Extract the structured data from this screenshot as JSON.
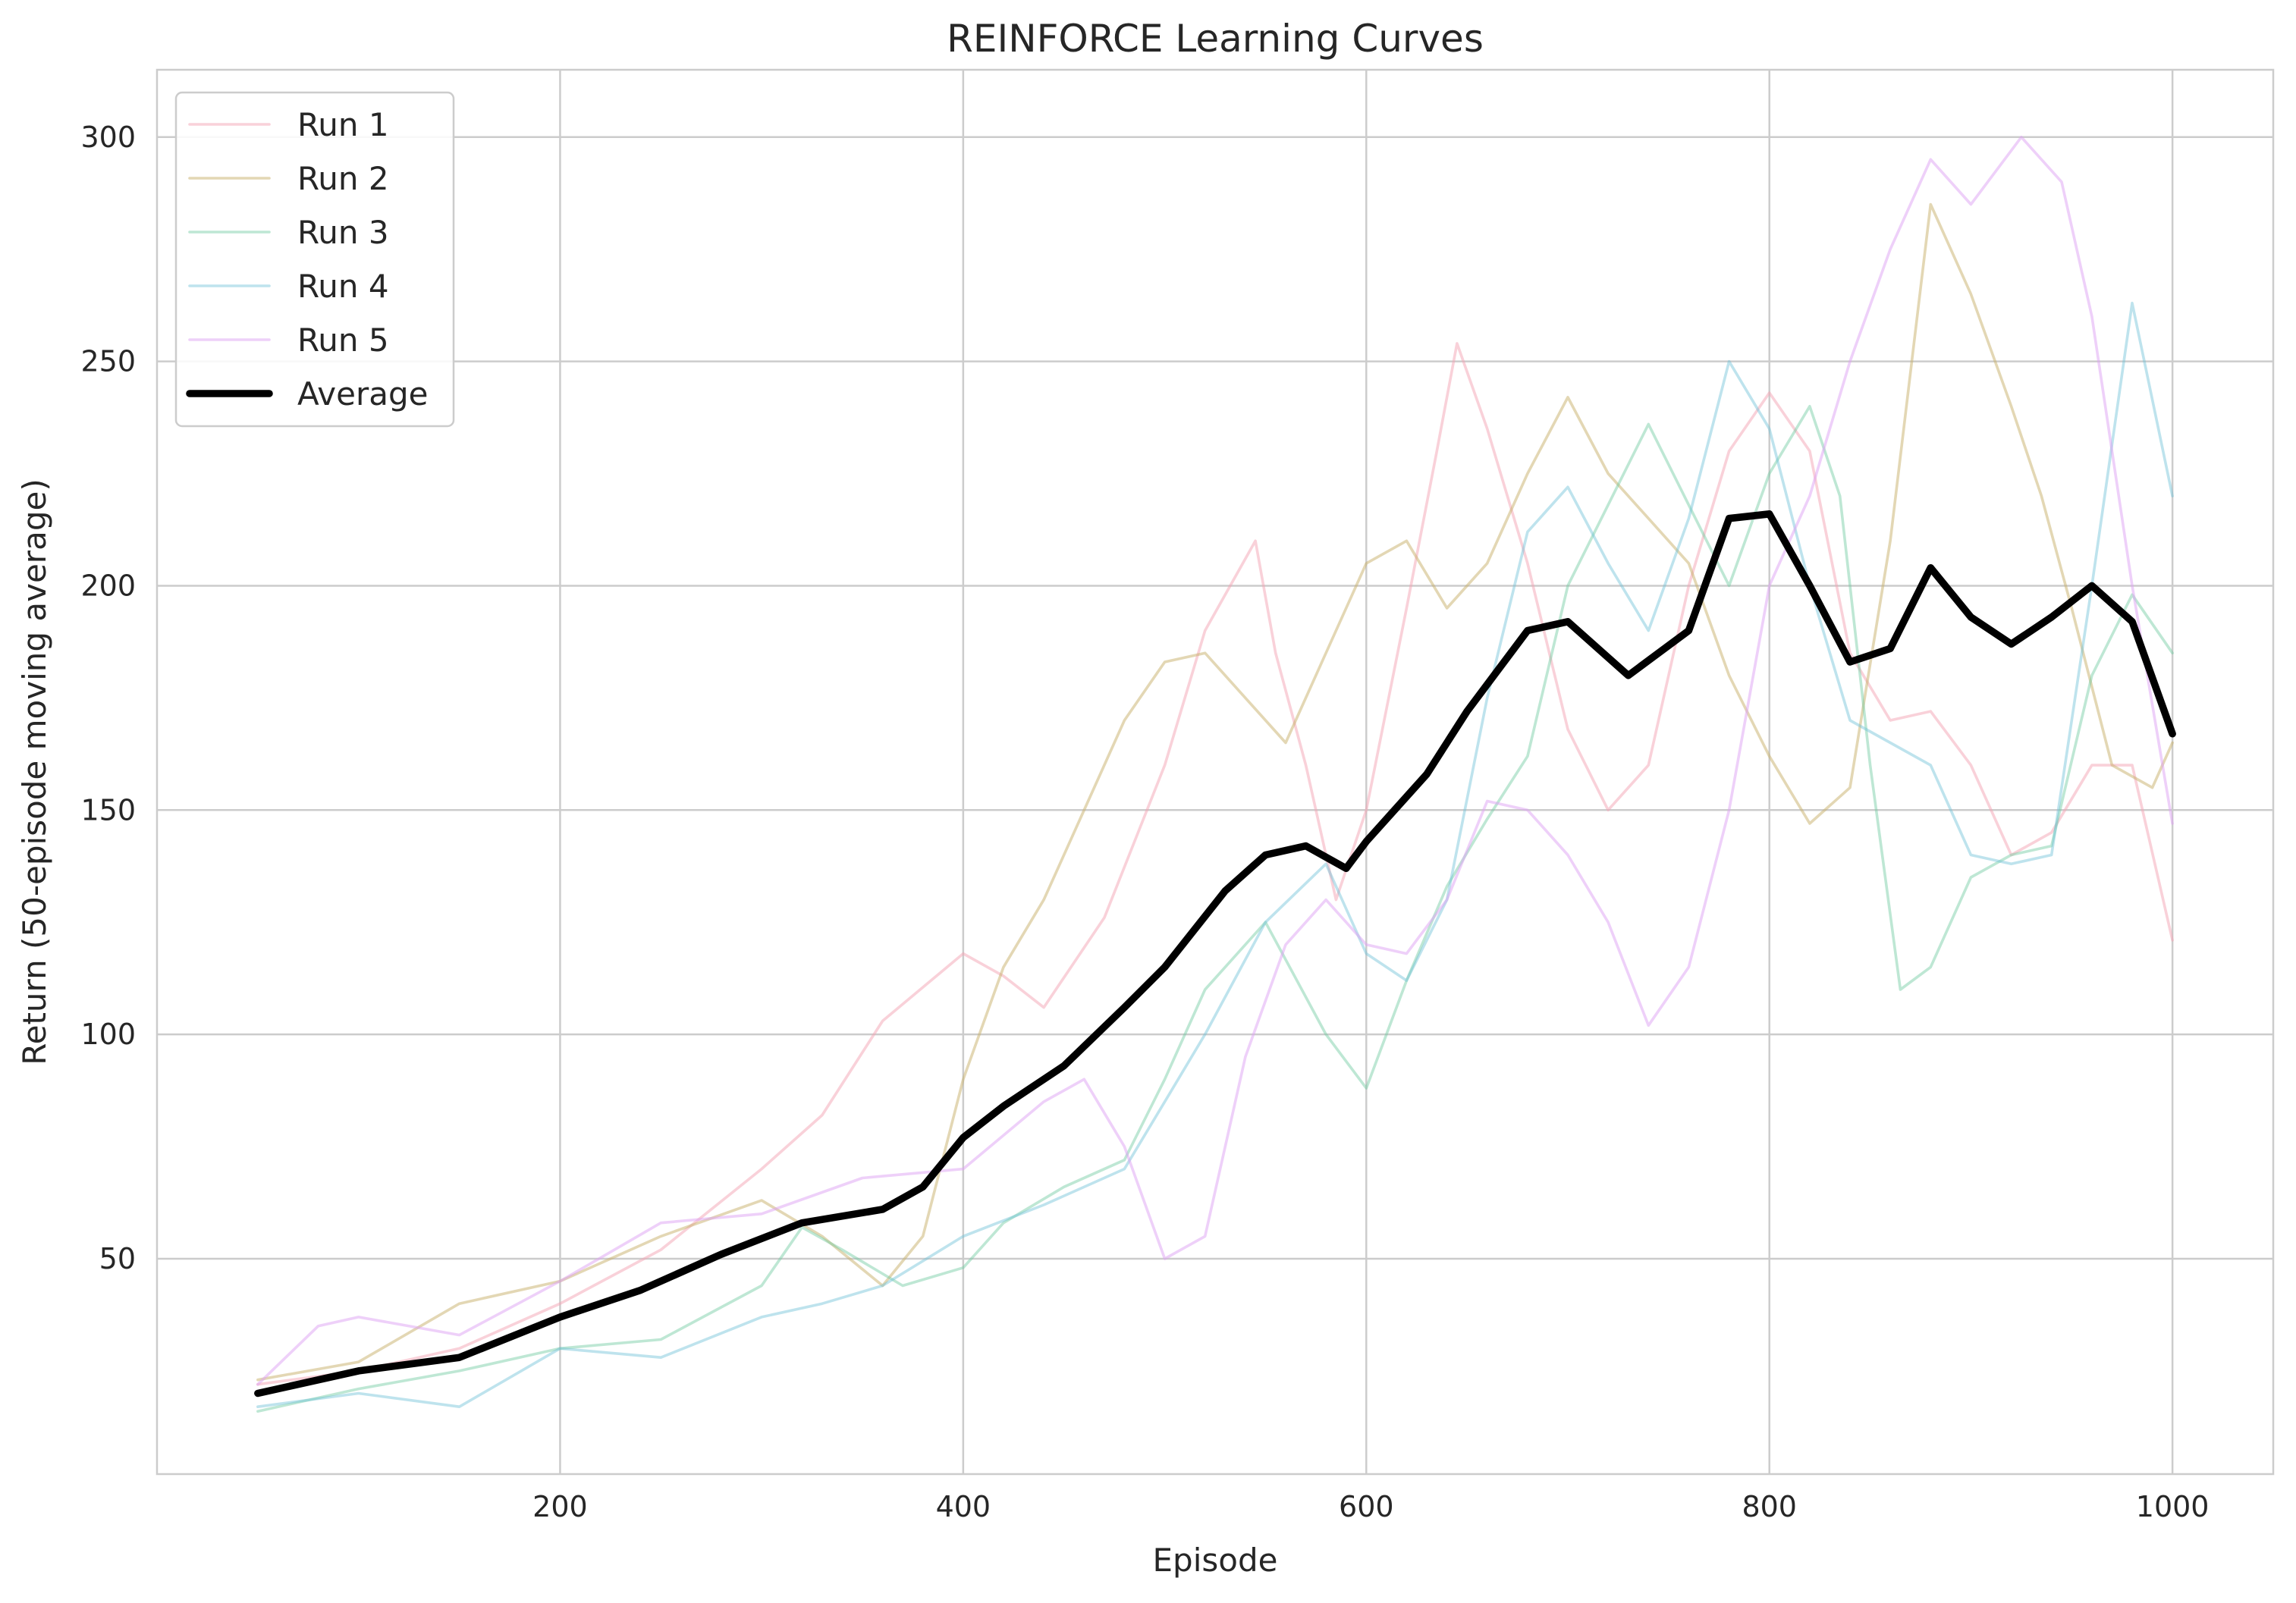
{
  "chart_data": {
    "type": "line",
    "title": "REINFORCE Learning Curves",
    "xlabel": "Episode",
    "ylabel": "Return (50-episode moving average)",
    "xlim": [
      0,
      1050
    ],
    "ylim": [
      2,
      315
    ],
    "xticks": [
      200,
      400,
      600,
      800,
      1000
    ],
    "yticks": [
      50,
      100,
      150,
      200,
      250,
      300
    ],
    "grid": true,
    "legend_position": "top-left",
    "series": [
      {
        "name": "Run 1",
        "color": "#f4a3b3",
        "opacity": 0.5,
        "width": 1.5,
        "points": [
          [
            50,
            22
          ],
          [
            100,
            25
          ],
          [
            150,
            30
          ],
          [
            200,
            40
          ],
          [
            250,
            52
          ],
          [
            300,
            70
          ],
          [
            330,
            82
          ],
          [
            360,
            103
          ],
          [
            400,
            118
          ],
          [
            420,
            113
          ],
          [
            440,
            106
          ],
          [
            470,
            126
          ],
          [
            500,
            160
          ],
          [
            520,
            190
          ],
          [
            545,
            210
          ],
          [
            555,
            185
          ],
          [
            570,
            160
          ],
          [
            585,
            130
          ],
          [
            600,
            150
          ],
          [
            620,
            195
          ],
          [
            635,
            230
          ],
          [
            645,
            254
          ],
          [
            660,
            235
          ],
          [
            680,
            205
          ],
          [
            700,
            168
          ],
          [
            720,
            150
          ],
          [
            740,
            160
          ],
          [
            760,
            200
          ],
          [
            780,
            230
          ],
          [
            800,
            243
          ],
          [
            820,
            230
          ],
          [
            840,
            185
          ],
          [
            860,
            170
          ],
          [
            880,
            172
          ],
          [
            900,
            160
          ],
          [
            920,
            140
          ],
          [
            940,
            145
          ],
          [
            960,
            160
          ],
          [
            980,
            160
          ],
          [
            1000,
            121
          ]
        ]
      },
      {
        "name": "Run 2",
        "color": "#c8b06a",
        "opacity": 0.5,
        "width": 1.5,
        "points": [
          [
            50,
            23
          ],
          [
            100,
            27
          ],
          [
            150,
            40
          ],
          [
            200,
            45
          ],
          [
            250,
            55
          ],
          [
            300,
            63
          ],
          [
            330,
            55
          ],
          [
            360,
            44
          ],
          [
            380,
            55
          ],
          [
            400,
            90
          ],
          [
            420,
            115
          ],
          [
            440,
            130
          ],
          [
            460,
            150
          ],
          [
            480,
            170
          ],
          [
            500,
            183
          ],
          [
            520,
            185
          ],
          [
            540,
            175
          ],
          [
            560,
            165
          ],
          [
            580,
            185
          ],
          [
            600,
            205
          ],
          [
            620,
            210
          ],
          [
            640,
            195
          ],
          [
            660,
            205
          ],
          [
            680,
            225
          ],
          [
            700,
            242
          ],
          [
            720,
            225
          ],
          [
            740,
            215
          ],
          [
            760,
            205
          ],
          [
            780,
            180
          ],
          [
            800,
            162
          ],
          [
            820,
            147
          ],
          [
            840,
            155
          ],
          [
            860,
            210
          ],
          [
            880,
            285
          ],
          [
            900,
            265
          ],
          [
            920,
            240
          ],
          [
            935,
            220
          ],
          [
            950,
            195
          ],
          [
            970,
            160
          ],
          [
            990,
            155
          ],
          [
            1000,
            165
          ]
        ]
      },
      {
        "name": "Run 3",
        "color": "#6fc9a0",
        "opacity": 0.45,
        "width": 1.5,
        "points": [
          [
            50,
            16
          ],
          [
            100,
            21
          ],
          [
            150,
            25
          ],
          [
            200,
            30
          ],
          [
            250,
            32
          ],
          [
            300,
            44
          ],
          [
            320,
            57
          ],
          [
            340,
            52
          ],
          [
            370,
            44
          ],
          [
            400,
            48
          ],
          [
            420,
            58
          ],
          [
            450,
            66
          ],
          [
            480,
            72
          ],
          [
            500,
            90
          ],
          [
            520,
            110
          ],
          [
            550,
            125
          ],
          [
            580,
            100
          ],
          [
            600,
            88
          ],
          [
            620,
            112
          ],
          [
            640,
            133
          ],
          [
            660,
            148
          ],
          [
            680,
            162
          ],
          [
            700,
            200
          ],
          [
            720,
            218
          ],
          [
            740,
            236
          ],
          [
            760,
            218
          ],
          [
            780,
            200
          ],
          [
            800,
            225
          ],
          [
            820,
            240
          ],
          [
            835,
            220
          ],
          [
            850,
            160
          ],
          [
            865,
            110
          ],
          [
            880,
            115
          ],
          [
            900,
            135
          ],
          [
            920,
            140
          ],
          [
            940,
            142
          ],
          [
            960,
            180
          ],
          [
            980,
            198
          ],
          [
            1000,
            185
          ]
        ]
      },
      {
        "name": "Run 4",
        "color": "#6ec0d8",
        "opacity": 0.45,
        "width": 1.5,
        "points": [
          [
            50,
            17
          ],
          [
            100,
            20
          ],
          [
            150,
            17
          ],
          [
            200,
            30
          ],
          [
            250,
            28
          ],
          [
            300,
            37
          ],
          [
            330,
            40
          ],
          [
            360,
            44
          ],
          [
            400,
            55
          ],
          [
            440,
            62
          ],
          [
            480,
            70
          ],
          [
            500,
            85
          ],
          [
            520,
            100
          ],
          [
            550,
            125
          ],
          [
            580,
            138
          ],
          [
            600,
            118
          ],
          [
            620,
            112
          ],
          [
            640,
            130
          ],
          [
            660,
            175
          ],
          [
            680,
            212
          ],
          [
            700,
            222
          ],
          [
            720,
            205
          ],
          [
            740,
            190
          ],
          [
            760,
            215
          ],
          [
            780,
            250
          ],
          [
            800,
            235
          ],
          [
            820,
            200
          ],
          [
            840,
            170
          ],
          [
            860,
            165
          ],
          [
            880,
            160
          ],
          [
            900,
            140
          ],
          [
            920,
            138
          ],
          [
            940,
            140
          ],
          [
            960,
            200
          ],
          [
            980,
            263
          ],
          [
            1000,
            220
          ]
        ]
      },
      {
        "name": "Run 5",
        "color": "#dda2f3",
        "opacity": 0.5,
        "width": 1.5,
        "points": [
          [
            50,
            22
          ],
          [
            80,
            35
          ],
          [
            100,
            37
          ],
          [
            150,
            33
          ],
          [
            200,
            45
          ],
          [
            250,
            58
          ],
          [
            300,
            60
          ],
          [
            350,
            68
          ],
          [
            400,
            70
          ],
          [
            440,
            85
          ],
          [
            460,
            90
          ],
          [
            480,
            75
          ],
          [
            500,
            50
          ],
          [
            520,
            55
          ],
          [
            540,
            95
          ],
          [
            560,
            120
          ],
          [
            580,
            130
          ],
          [
            600,
            120
          ],
          [
            620,
            118
          ],
          [
            640,
            130
          ],
          [
            660,
            152
          ],
          [
            680,
            150
          ],
          [
            700,
            140
          ],
          [
            720,
            125
          ],
          [
            740,
            102
          ],
          [
            760,
            115
          ],
          [
            780,
            150
          ],
          [
            800,
            200
          ],
          [
            820,
            220
          ],
          [
            840,
            250
          ],
          [
            860,
            275
          ],
          [
            880,
            295
          ],
          [
            900,
            285
          ],
          [
            925,
            300
          ],
          [
            945,
            290
          ],
          [
            960,
            260
          ],
          [
            980,
            200
          ],
          [
            1000,
            147
          ]
        ]
      },
      {
        "name": "Average",
        "color": "#000000",
        "opacity": 1,
        "width": 4,
        "points": [
          [
            50,
            20
          ],
          [
            100,
            25
          ],
          [
            150,
            28
          ],
          [
            200,
            37
          ],
          [
            240,
            43
          ],
          [
            280,
            51
          ],
          [
            320,
            58
          ],
          [
            360,
            61
          ],
          [
            380,
            66
          ],
          [
            400,
            77
          ],
          [
            420,
            84
          ],
          [
            450,
            93
          ],
          [
            480,
            106
          ],
          [
            500,
            115
          ],
          [
            530,
            132
          ],
          [
            550,
            140
          ],
          [
            570,
            142
          ],
          [
            590,
            137
          ],
          [
            600,
            143
          ],
          [
            630,
            158
          ],
          [
            650,
            172
          ],
          [
            680,
            190
          ],
          [
            700,
            192
          ],
          [
            730,
            180
          ],
          [
            760,
            190
          ],
          [
            780,
            215
          ],
          [
            800,
            216
          ],
          [
            820,
            200
          ],
          [
            840,
            183
          ],
          [
            860,
            186
          ],
          [
            880,
            204
          ],
          [
            900,
            193
          ],
          [
            920,
            187
          ],
          [
            940,
            193
          ],
          [
            960,
            200
          ],
          [
            980,
            192
          ],
          [
            1000,
            167
          ]
        ]
      }
    ]
  }
}
